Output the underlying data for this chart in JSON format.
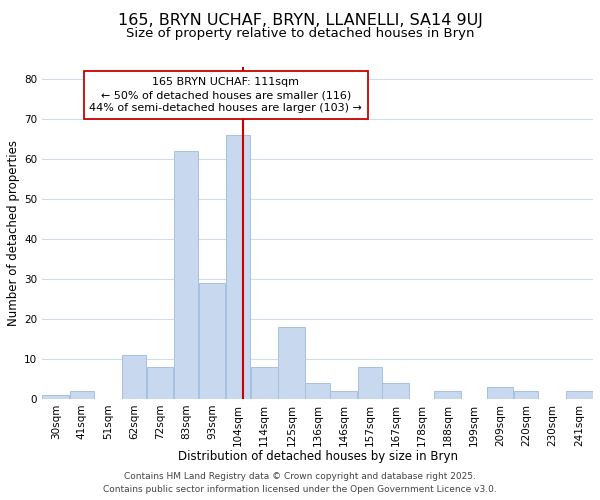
{
  "title": "165, BRYN UCHAF, BRYN, LLANELLI, SA14 9UJ",
  "subtitle": "Size of property relative to detached houses in Bryn",
  "xlabel": "Distribution of detached houses by size in Bryn",
  "ylabel": "Number of detached properties",
  "bin_labels": [
    "30sqm",
    "41sqm",
    "51sqm",
    "62sqm",
    "72sqm",
    "83sqm",
    "93sqm",
    "104sqm",
    "114sqm",
    "125sqm",
    "136sqm",
    "146sqm",
    "157sqm",
    "167sqm",
    "178sqm",
    "188sqm",
    "199sqm",
    "209sqm",
    "220sqm",
    "230sqm",
    "241sqm"
  ],
  "bin_edges": [
    30,
    41,
    51,
    62,
    72,
    83,
    93,
    104,
    114,
    125,
    136,
    146,
    157,
    167,
    178,
    188,
    199,
    209,
    220,
    230,
    241,
    252
  ],
  "bar_heights": [
    1,
    2,
    0,
    11,
    8,
    62,
    29,
    66,
    8,
    18,
    4,
    2,
    8,
    4,
    0,
    2,
    0,
    3,
    2,
    0,
    2
  ],
  "bar_color": "#c8d9ef",
  "bar_edgecolor": "#a8c0e0",
  "vline_x": 111,
  "vline_color": "#cc0000",
  "ylim": [
    0,
    83
  ],
  "yticks": [
    0,
    10,
    20,
    30,
    40,
    50,
    60,
    70,
    80
  ],
  "annotation_title": "165 BRYN UCHAF: 111sqm",
  "annotation_line1": "← 50% of detached houses are smaller (116)",
  "annotation_line2": "44% of semi-detached houses are larger (103) →",
  "footnote1": "Contains HM Land Registry data © Crown copyright and database right 2025.",
  "footnote2": "Contains public sector information licensed under the Open Government Licence v3.0.",
  "background_color": "#ffffff",
  "grid_color": "#d0dcea",
  "title_fontsize": 11.5,
  "subtitle_fontsize": 9.5,
  "axis_label_fontsize": 8.5,
  "tick_fontsize": 7.5,
  "annotation_fontsize": 8,
  "footnote_fontsize": 6.5
}
